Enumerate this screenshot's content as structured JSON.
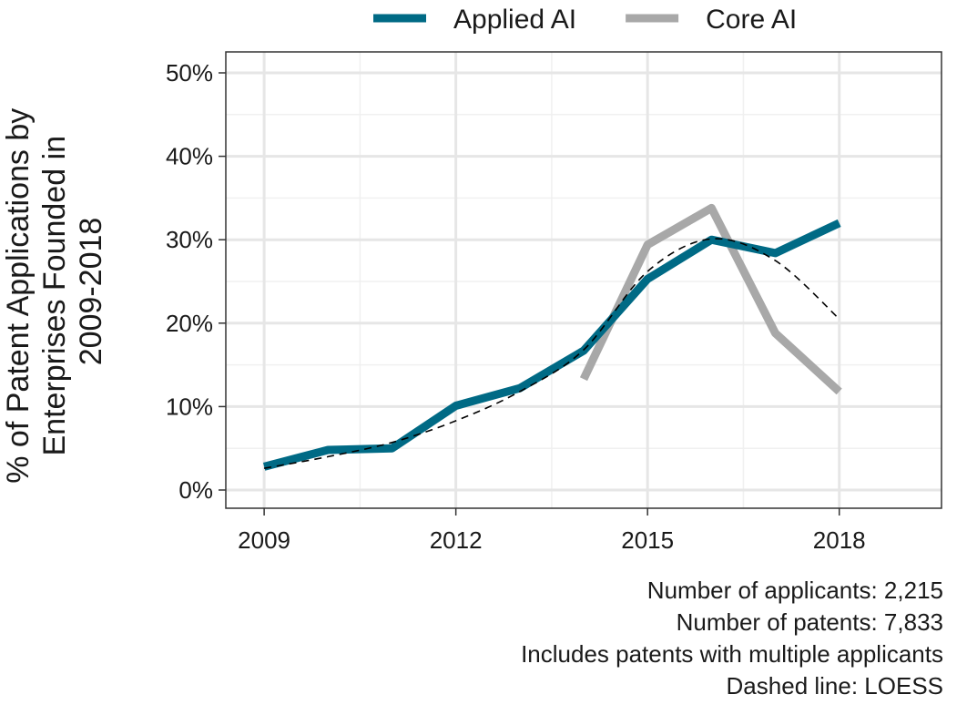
{
  "chart_data": {
    "type": "line",
    "x": [
      2009,
      2010,
      2011,
      2012,
      2013,
      2014,
      2015,
      2016,
      2017,
      2018
    ],
    "xlim": [
      2009,
      2018
    ],
    "xticks": [
      2009,
      2012,
      2015,
      2018
    ],
    "ylim": [
      0,
      50
    ],
    "yticks": [
      0,
      10,
      20,
      30,
      40,
      50
    ],
    "ytick_labels": [
      "0%",
      "10%",
      "20%",
      "30%",
      "40%",
      "50%"
    ],
    "ylabel_lines": [
      "% of Patent Applications by",
      "Enterprises Founded in",
      "2009-2018"
    ],
    "xlabel": "",
    "grid": true,
    "legend_position": "top",
    "series": [
      {
        "name": "Applied AI",
        "color": "#006a85",
        "x": [
          2009,
          2010,
          2011,
          2012,
          2013,
          2014,
          2015,
          2016,
          2017,
          2018
        ],
        "values": [
          2.8,
          4.8,
          5.0,
          10.1,
          12.2,
          16.7,
          25.3,
          30.0,
          28.4,
          32.0
        ]
      },
      {
        "name": "Core AI",
        "color": "#a8a8a8",
        "x": [
          2014,
          2015,
          2016,
          2017,
          2018
        ],
        "values": [
          13.3,
          29.4,
          33.8,
          18.8,
          11.8
        ]
      }
    ],
    "trend_line": {
      "style": "dashed",
      "color": "#000000",
      "x": [
        2009,
        2010,
        2011,
        2012,
        2013,
        2014,
        2015,
        2016,
        2017,
        2018
      ],
      "values": [
        2.6,
        4.0,
        5.7,
        8.3,
        11.8,
        16.8,
        26.2,
        30.1,
        27.5,
        20.5
      ]
    }
  },
  "caption": [
    "Number of applicants: 2,215",
    "Number of patents: 7,833",
    "Includes patents with multiple applicants",
    "Dashed line: LOESS"
  ]
}
